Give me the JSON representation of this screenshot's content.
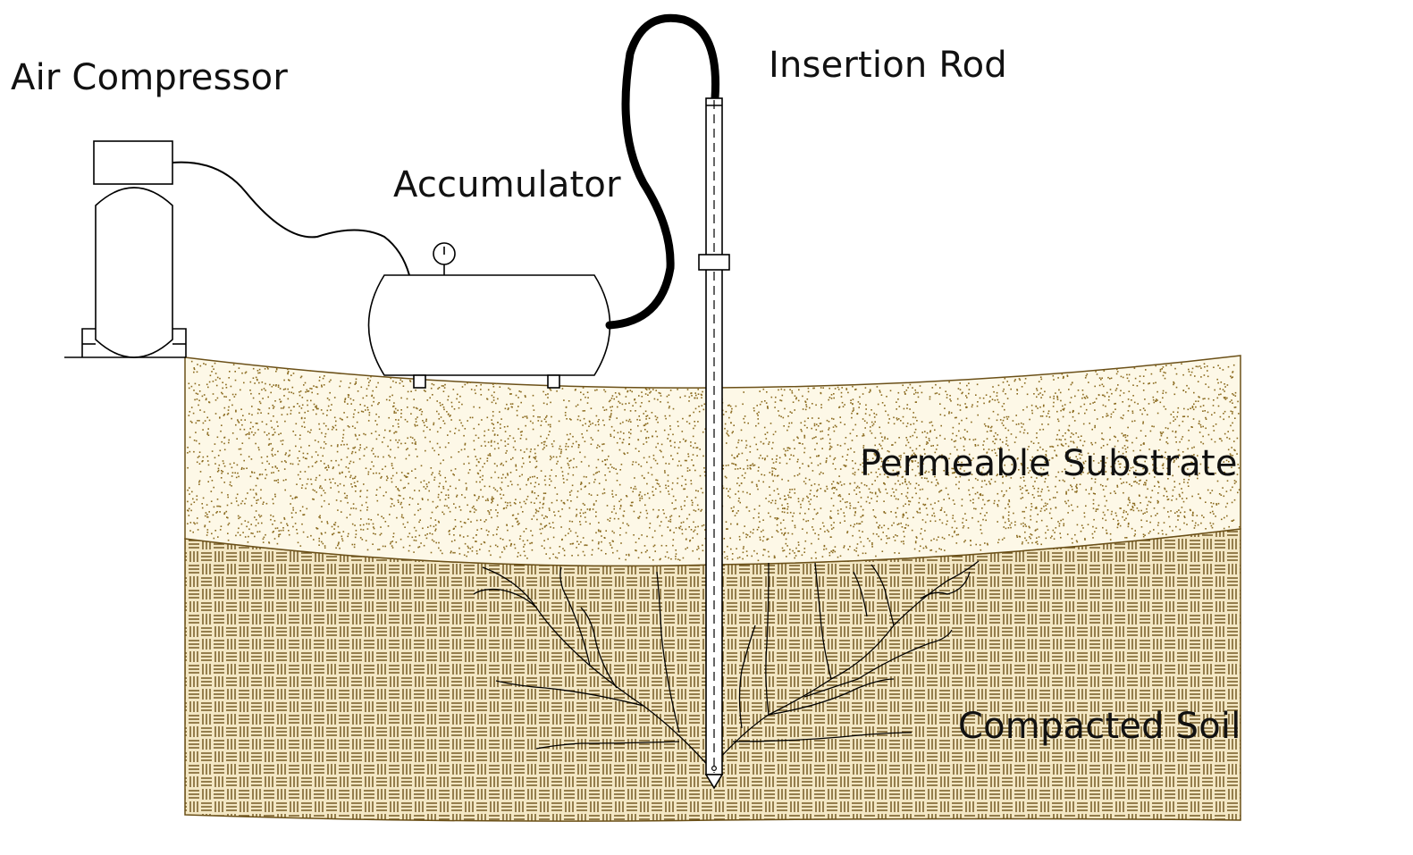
{
  "labels": {
    "air_compressor": "Air Compressor",
    "accumulator": "Accumulator",
    "insertion_rod": "Insertion Rod",
    "permeable_substrate": "Permeable Substrate",
    "compacted_soil": "Compacted Soil"
  },
  "colors": {
    "line": "#000000",
    "sand_fill": "#fdf8e7",
    "sand_dot": "#8a6a1e",
    "soil_fill": "#f3e7c4",
    "soil_pattern": "#6b5018",
    "label_text": "#111111"
  }
}
